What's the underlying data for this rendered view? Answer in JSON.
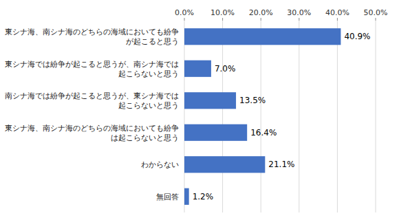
{
  "chart_data": {
    "type": "bar",
    "orientation": "horizontal",
    "categories": [
      "東シナ海、南シナ海のどちらの海域においても紛争\nが起こると思う",
      "東シナ海では紛争が起こると思うが、南シナ海では\n起こらないと思う",
      "南シナ海では紛争が起こると思うが、東シナ海では\n起こらないと思う",
      "東シナ海、南シナ海のどちらの海域においても紛争\nは起こらないと思う",
      "わからない",
      "無回答"
    ],
    "values": [
      40.9,
      7.0,
      13.5,
      16.4,
      21.1,
      1.2
    ],
    "value_labels": [
      "40.9%",
      "7.0%",
      "13.5%",
      "16.4%",
      "21.1%",
      "1.2%"
    ],
    "data_labels": true,
    "color": "#4472C4",
    "xlim": [
      0,
      50
    ],
    "xticks": [
      {
        "value": 0,
        "label": "0.0%"
      },
      {
        "value": 10,
        "label": "10.0%"
      },
      {
        "value": 20,
        "label": "20.0%"
      },
      {
        "value": 30,
        "label": "30.0%"
      },
      {
        "value": 40,
        "label": "40.0%"
      },
      {
        "value": 50,
        "label": "50.0%"
      }
    ],
    "grid": true
  }
}
